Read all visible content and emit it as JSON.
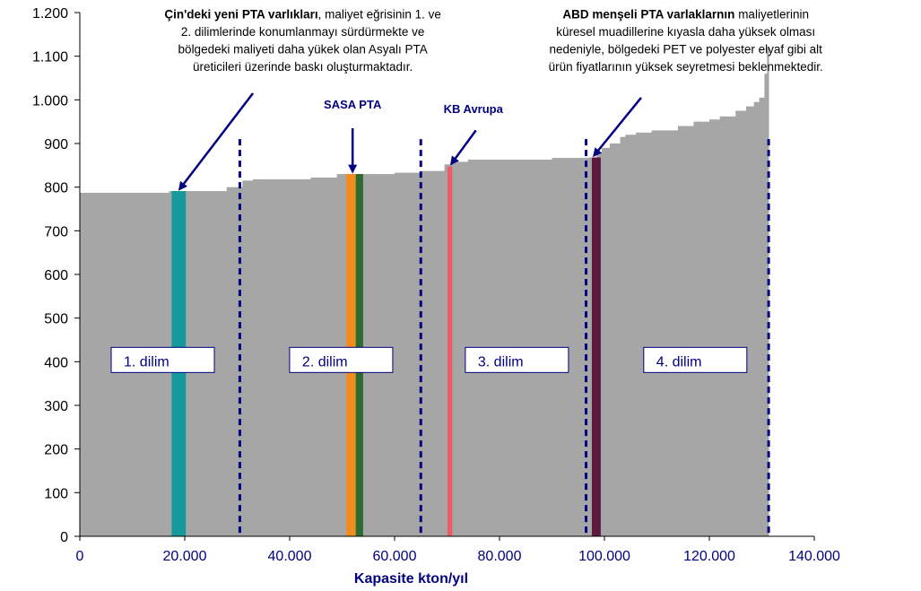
{
  "chart_data": {
    "type": "bar",
    "subtype": "cost-curve",
    "xlabel": "Kapasite kton/yıl",
    "ylabel": "",
    "xlim": [
      0,
      140000
    ],
    "ylim": [
      0,
      1200
    ],
    "x_ticks": [
      0,
      20000,
      40000,
      60000,
      80000,
      100000,
      120000,
      140000
    ],
    "x_tick_labels": [
      "0",
      "20.000",
      "40.000",
      "60.000",
      "80.000",
      "100.000",
      "120.000",
      "140.000"
    ],
    "y_ticks": [
      0,
      100,
      200,
      300,
      400,
      500,
      600,
      700,
      800,
      900,
      1000,
      1100,
      1200
    ],
    "y_tick_labels": [
      "0",
      "100",
      "200",
      "300",
      "400",
      "500",
      "600",
      "700",
      "800",
      "900",
      "1.000",
      "1.100",
      "1.200"
    ],
    "fill_color": "#a6a6a6",
    "curve": [
      {
        "x0": 0,
        "x1": 17000,
        "y": 787
      },
      {
        "x0": 17000,
        "x1": 28000,
        "y": 791
      },
      {
        "x0": 28000,
        "x1": 31000,
        "y": 800
      },
      {
        "x0": 31000,
        "x1": 33000,
        "y": 815
      },
      {
        "x0": 33000,
        "x1": 44000,
        "y": 818
      },
      {
        "x0": 44000,
        "x1": 49000,
        "y": 822
      },
      {
        "x0": 49000,
        "x1": 53000,
        "y": 830
      },
      {
        "x0": 53000,
        "x1": 60000,
        "y": 830
      },
      {
        "x0": 60000,
        "x1": 65000,
        "y": 833
      },
      {
        "x0": 65000,
        "x1": 69500,
        "y": 837
      },
      {
        "x0": 69500,
        "x1": 71000,
        "y": 852
      },
      {
        "x0": 71000,
        "x1": 74000,
        "y": 858
      },
      {
        "x0": 74000,
        "x1": 90000,
        "y": 863
      },
      {
        "x0": 90000,
        "x1": 97000,
        "y": 867
      },
      {
        "x0": 97000,
        "x1": 98500,
        "y": 868
      },
      {
        "x0": 98500,
        "x1": 99500,
        "y": 880
      },
      {
        "x0": 99500,
        "x1": 101000,
        "y": 890
      },
      {
        "x0": 101000,
        "x1": 103000,
        "y": 900
      },
      {
        "x0": 103000,
        "x1": 104000,
        "y": 915
      },
      {
        "x0": 104000,
        "x1": 106000,
        "y": 920
      },
      {
        "x0": 106000,
        "x1": 109000,
        "y": 925
      },
      {
        "x0": 109000,
        "x1": 114000,
        "y": 930
      },
      {
        "x0": 114000,
        "x1": 117000,
        "y": 940
      },
      {
        "x0": 117000,
        "x1": 120000,
        "y": 950
      },
      {
        "x0": 120000,
        "x1": 122000,
        "y": 955
      },
      {
        "x0": 122000,
        "x1": 125000,
        "y": 962
      },
      {
        "x0": 125000,
        "x1": 127000,
        "y": 975
      },
      {
        "x0": 127000,
        "x1": 128500,
        "y": 985
      },
      {
        "x0": 128500,
        "x1": 129500,
        "y": 995
      },
      {
        "x0": 129500,
        "x1": 130500,
        "y": 1005
      },
      {
        "x0": 130500,
        "x1": 131000,
        "y": 1060
      },
      {
        "x0": 131000,
        "x1": 131300,
        "y": 1120
      }
    ],
    "highlights": [
      {
        "x0": 17500,
        "x1": 20200,
        "y": 791,
        "color": "#159a9c"
      },
      {
        "x0": 50800,
        "x1": 52600,
        "y": 830,
        "color": "#f28c1e"
      },
      {
        "x0": 52600,
        "x1": 54000,
        "y": 830,
        "color": "#2e6b33"
      },
      {
        "x0": 70100,
        "x1": 71000,
        "y": 847,
        "color": "#f05a64"
      },
      {
        "x0": 97600,
        "x1": 99300,
        "y": 868,
        "color": "#5c1a40"
      }
    ],
    "band_separators": [
      30500,
      65000,
      96500,
      131300
    ],
    "band_separator_top": 910,
    "bands": [
      {
        "label": "1. dilim",
        "x": 6500,
        "y": 400
      },
      {
        "label": "2. dilim",
        "x": 40500,
        "y": 400
      },
      {
        "label": "3. dilim",
        "x": 74000,
        "y": 400
      },
      {
        "label": "4. dilim",
        "x": 108000,
        "y": 400
      }
    ],
    "markers": [
      {
        "label": "SASA PTA",
        "x": 52000,
        "label_y": 980,
        "arrow_from": 935,
        "arrow_to": 835
      },
      {
        "label": "KB Avrupa",
        "x": 75000,
        "label_y": 970,
        "arrow_start_x": 75500,
        "arrow_from": 930,
        "arrow_end_x": 70800,
        "arrow_to": 853
      }
    ],
    "annotations": [
      {
        "lines": [
          {
            "bold": "Çin'deki yeni PTA varlıkları",
            "text": ", maliyet eğrisinin 1. ve"
          },
          {
            "bold": "",
            "text": "2. dilimlerinde konumlanmayı sürdürmekte ve"
          },
          {
            "bold": "",
            "text": "bölgedeki maliyeti daha yükek olan Asyalı PTA"
          },
          {
            "bold": "",
            "text": "üreticileri üzerinde baskı oluşturmaktadır."
          }
        ],
        "center_x": 42500,
        "top_y": 1195,
        "arrow": {
          "x_from": 33000,
          "y_from": 1015,
          "x_to": 19000,
          "y_to": 795
        }
      },
      {
        "lines": [
          {
            "bold": "ABD menşeli PTA varlaklarnın",
            "text": " maliyetlerinin"
          },
          {
            "bold": "",
            "text": "küresel muadillerine kıyasla daha yüksek olması"
          },
          {
            "bold": "",
            "text": "nedeniyle, bölgedeki PET ve polyester elyaf gibi alt"
          },
          {
            "bold": "",
            "text": "ürün fiyatlarının yüksek seyretmesi beklenmektedir."
          }
        ],
        "center_x": 115500,
        "top_y": 1195,
        "arrow": {
          "x_from": 107000,
          "y_from": 1005,
          "x_to": 98000,
          "y_to": 872
        }
      }
    ],
    "grid": false,
    "legend": "none"
  }
}
